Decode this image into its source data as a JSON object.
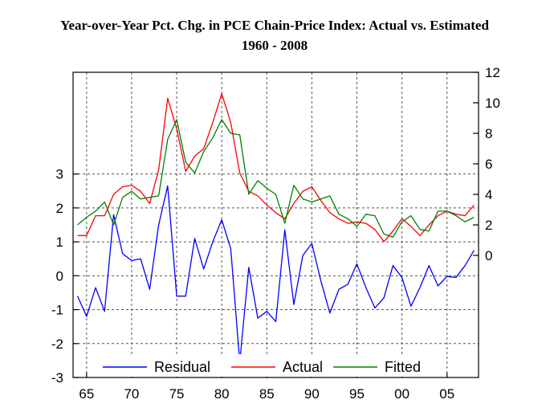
{
  "chart_data": {
    "type": "line",
    "title": "Year-over-Year Pct. Chg. in PCE Chain-Price Index: Actual vs. Estimated",
    "subtitle": "1960 - 2008",
    "x": [
      1964,
      1965,
      1966,
      1967,
      1968,
      1969,
      1970,
      1971,
      1972,
      1973,
      1974,
      1975,
      1976,
      1977,
      1978,
      1979,
      1980,
      1981,
      1982,
      1983,
      1984,
      1985,
      1986,
      1987,
      1988,
      1989,
      1990,
      1991,
      1992,
      1993,
      1994,
      1995,
      1996,
      1997,
      1998,
      1999,
      2000,
      2001,
      2002,
      2003,
      2004,
      2005,
      2006,
      2007,
      2008
    ],
    "xlim": [
      1963.5,
      2008.5
    ],
    "x_ticks": [
      1965,
      1970,
      1975,
      1980,
      1985,
      1990,
      1995,
      2000,
      2005
    ],
    "x_tick_labels": [
      "65",
      "70",
      "75",
      "80",
      "85",
      "90",
      "95",
      "00",
      "05"
    ],
    "left_axis": {
      "ylim": [
        -3,
        6
      ],
      "ticks": [
        3,
        2,
        1,
        0,
        -1,
        -2,
        -3
      ],
      "tick_labels": [
        "3",
        "2",
        "1",
        "0",
        "-1",
        "-2",
        "-3"
      ]
    },
    "right_axis": {
      "ylim": [
        -8,
        12
      ],
      "ticks": [
        12,
        10,
        8,
        6,
        4,
        2,
        0
      ],
      "tick_labels": [
        "12",
        "10",
        "8",
        "6",
        "4",
        "2",
        "0"
      ]
    },
    "series": [
      {
        "name": "Residual",
        "axis": "left",
        "color": "#0000ff",
        "values": [
          -0.6,
          -1.2,
          -0.35,
          -1.05,
          1.8,
          0.65,
          0.45,
          0.5,
          -0.4,
          1.5,
          2.65,
          -0.6,
          -0.6,
          1.1,
          0.2,
          1.0,
          1.65,
          0.8,
          -2.55,
          0.25,
          -1.25,
          -1.05,
          -1.35,
          1.35,
          -0.85,
          0.6,
          0.95,
          -0.15,
          -1.1,
          -0.4,
          -0.25,
          0.35,
          -0.35,
          -0.95,
          -0.65,
          0.3,
          -0.05,
          -0.9,
          -0.35,
          0.3,
          -0.3,
          -0.02,
          -0.05,
          0.3,
          0.75
        ]
      },
      {
        "name": "Actual",
        "axis": "right",
        "color": "#ff0000",
        "values": [
          1.3,
          1.3,
          2.6,
          2.6,
          4.0,
          4.5,
          4.6,
          4.2,
          3.4,
          5.6,
          10.3,
          8.3,
          5.5,
          6.5,
          7.0,
          8.7,
          10.6,
          8.7,
          5.4,
          4.2,
          3.9,
          3.3,
          2.8,
          2.4,
          3.4,
          4.2,
          4.5,
          3.6,
          2.8,
          2.4,
          2.1,
          2.2,
          2.1,
          1.7,
          0.9,
          1.6,
          2.4,
          1.9,
          1.3,
          2.0,
          2.6,
          2.9,
          2.7,
          2.6,
          3.3
        ]
      },
      {
        "name": "Fitted",
        "axis": "right",
        "color": "#008000",
        "values": [
          2.0,
          2.5,
          2.9,
          3.5,
          2.0,
          3.8,
          4.2,
          3.7,
          3.8,
          3.9,
          7.6,
          8.9,
          6.1,
          5.4,
          6.8,
          7.7,
          8.9,
          8.0,
          7.9,
          4.0,
          4.9,
          4.4,
          4.0,
          2.1,
          4.6,
          3.7,
          3.5,
          3.7,
          3.9,
          2.7,
          2.4,
          1.9,
          2.7,
          2.6,
          1.4,
          1.2,
          2.2,
          2.6,
          1.7,
          1.6,
          2.9,
          2.9,
          2.6,
          2.2,
          2.5
        ]
      }
    ],
    "legend": {
      "placement": "bottom-inside",
      "entries": [
        "Residual",
        "Actual",
        "Fitted"
      ]
    },
    "grid": true
  }
}
